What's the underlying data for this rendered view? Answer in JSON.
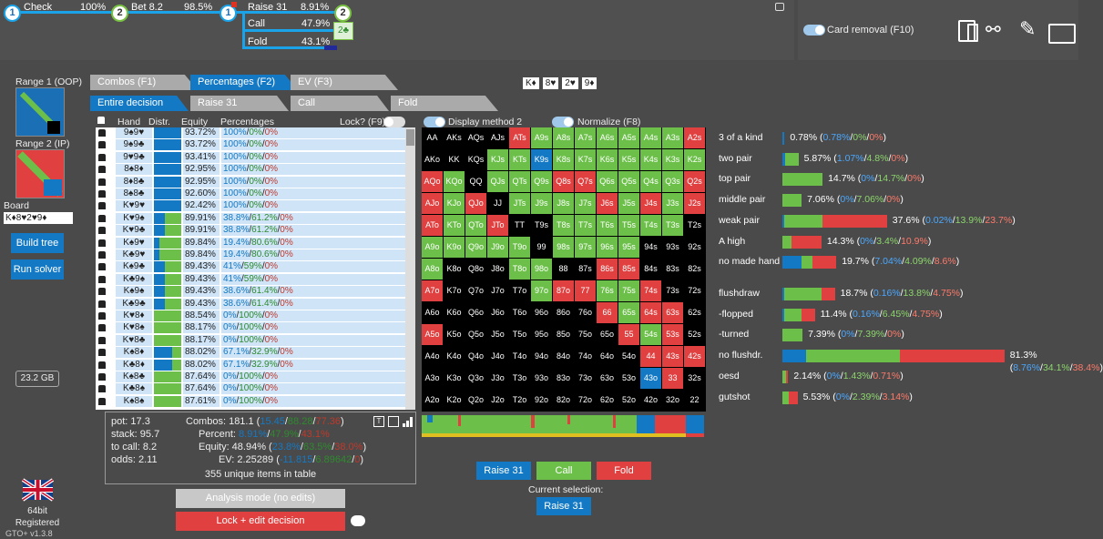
{
  "tree": {
    "nodes": [
      {
        "num": "1",
        "label": "Check",
        "pct": "100%"
      },
      {
        "num": "2",
        "label": "Bet 8.2",
        "pct": "98.5%"
      },
      {
        "num": "1",
        "label": "Raise 31",
        "pct": "8.91%"
      },
      {
        "num": "2",
        "label": "",
        "pct": ""
      }
    ],
    "branches": [
      {
        "label": "Call",
        "pct": "47.9%"
      },
      {
        "label": "Fold",
        "pct": "43.1%"
      }
    ],
    "card_box": "2♣"
  },
  "card_removal": {
    "label": "Card removal (F10)"
  },
  "left": {
    "range1": "Range 1 (OOP)",
    "range2": "Range 2 (IP)",
    "board_label": "Board",
    "board_value": "K♦8♥2♥9♦",
    "build_tree": "Build tree",
    "run_solver": "Run solver",
    "memory": "23.2 GB",
    "bits": "64bit",
    "registered": "Registered",
    "version": "GTO+ v1.3.8"
  },
  "tabs": {
    "top": [
      "Combos (F1)",
      "Percentages (F2)",
      "EV (F3)"
    ],
    "sub": [
      "Entire decision",
      "Raise 31",
      "Call",
      "Fold"
    ]
  },
  "board_cards": [
    "K♦",
    "8♥",
    "2♥",
    "9♦"
  ],
  "table": {
    "headers": {
      "hand": "Hand",
      "distr": "Distr.",
      "equity": "Equity",
      "pct": "Percentages",
      "lock": "Lock? (F9)"
    },
    "rows": [
      {
        "hand": "9♠9♥",
        "eq": "93.72%",
        "a": "100%",
        "b": "0%",
        "c": "0%",
        "blue": 1,
        "green": 0,
        "red": 0
      },
      {
        "hand": "9♠9♣",
        "eq": "93.72%",
        "a": "100%",
        "b": "0%",
        "c": "0%",
        "blue": 1,
        "green": 0,
        "red": 0
      },
      {
        "hand": "9♥9♣",
        "eq": "93.41%",
        "a": "100%",
        "b": "0%",
        "c": "0%",
        "blue": 1,
        "green": 0,
        "red": 0
      },
      {
        "hand": "8♠8♦",
        "eq": "92.95%",
        "a": "100%",
        "b": "0%",
        "c": "0%",
        "blue": 1,
        "green": 0,
        "red": 0
      },
      {
        "hand": "8♦8♣",
        "eq": "92.95%",
        "a": "100%",
        "b": "0%",
        "c": "0%",
        "blue": 1,
        "green": 0,
        "red": 0
      },
      {
        "hand": "8♠8♣",
        "eq": "92.60%",
        "a": "100%",
        "b": "0%",
        "c": "0%",
        "blue": 1,
        "green": 0,
        "red": 0
      },
      {
        "hand": "K♥9♥",
        "eq": "92.42%",
        "a": "100%",
        "b": "0%",
        "c": "0%",
        "blue": 1,
        "green": 0,
        "red": 0
      },
      {
        "hand": "K♥9♠",
        "eq": "89.91%",
        "a": "38.8%",
        "b": "61.2%",
        "c": "0%",
        "blue": 0.388,
        "green": 0.612,
        "red": 0
      },
      {
        "hand": "K♥9♣",
        "eq": "89.91%",
        "a": "38.8%",
        "b": "61.2%",
        "c": "0%",
        "blue": 0.388,
        "green": 0.612,
        "red": 0
      },
      {
        "hand": "K♠9♥",
        "eq": "89.84%",
        "a": "19.4%",
        "b": "80.6%",
        "c": "0%",
        "blue": 0.194,
        "green": 0.806,
        "red": 0
      },
      {
        "hand": "K♣9♥",
        "eq": "89.84%",
        "a": "19.4%",
        "b": "80.6%",
        "c": "0%",
        "blue": 0.194,
        "green": 0.806,
        "red": 0
      },
      {
        "hand": "K♠9♣",
        "eq": "89.43%",
        "a": "41%",
        "b": "59%",
        "c": "0%",
        "blue": 0.41,
        "green": 0.59,
        "red": 0
      },
      {
        "hand": "K♣9♠",
        "eq": "89.43%",
        "a": "41%",
        "b": "59%",
        "c": "0%",
        "blue": 0.41,
        "green": 0.59,
        "red": 0
      },
      {
        "hand": "K♠9♠",
        "eq": "89.43%",
        "a": "38.6%",
        "b": "61.4%",
        "c": "0%",
        "blue": 0.386,
        "green": 0.614,
        "red": 0
      },
      {
        "hand": "K♣9♣",
        "eq": "89.43%",
        "a": "38.6%",
        "b": "61.4%",
        "c": "0%",
        "blue": 0.386,
        "green": 0.614,
        "red": 0
      },
      {
        "hand": "K♥8♦",
        "eq": "88.54%",
        "a": "0%",
        "b": "100%",
        "c": "0%",
        "blue": 0,
        "green": 1,
        "red": 0
      },
      {
        "hand": "K♥8♠",
        "eq": "88.17%",
        "a": "0%",
        "b": "100%",
        "c": "0%",
        "blue": 0,
        "green": 1,
        "red": 0
      },
      {
        "hand": "K♥8♣",
        "eq": "88.17%",
        "a": "0%",
        "b": "100%",
        "c": "0%",
        "blue": 0,
        "green": 1,
        "red": 0
      },
      {
        "hand": "K♠8♦",
        "eq": "88.02%",
        "a": "67.1%",
        "b": "32.9%",
        "c": "0%",
        "blue": 0.671,
        "green": 0.329,
        "red": 0
      },
      {
        "hand": "K♣8♦",
        "eq": "88.02%",
        "a": "67.1%",
        "b": "32.9%",
        "c": "0%",
        "blue": 0.671,
        "green": 0.329,
        "red": 0
      },
      {
        "hand": "K♠8♣",
        "eq": "87.64%",
        "a": "0%",
        "b": "100%",
        "c": "0%",
        "blue": 0,
        "green": 1,
        "red": 0
      },
      {
        "hand": "K♣8♠",
        "eq": "87.64%",
        "a": "0%",
        "b": "100%",
        "c": "0%",
        "blue": 0,
        "green": 1,
        "red": 0
      },
      {
        "hand": "K♠8♠",
        "eq": "87.61%",
        "a": "0%",
        "b": "100%",
        "c": "0%",
        "blue": 0,
        "green": 1,
        "red": 0
      }
    ]
  },
  "summary": {
    "pot": "pot: 17.3",
    "stack": "stack: 95.7",
    "tocall": "to call: 8.2",
    "odds": "odds: 2.11",
    "combos_label": "Combos: 181.1 (",
    "combos_vals": [
      "15.45",
      "88.28",
      "77.36"
    ],
    "percent_label": "Percent:",
    "percent_vals": [
      "8.91%",
      "47.9%",
      "43.1%"
    ],
    "equity_label": "Equity: 48.94% (",
    "equity_vals": [
      "23.8%",
      "63.5%",
      "38.0%"
    ],
    "ev_label": "EV: 2.25289 (",
    "ev_vals": [
      "-11.815",
      "6.89642",
      "0"
    ],
    "unique": "355 unique items in table"
  },
  "modes": {
    "analysis": "Analysis mode (no edits)",
    "lock": "Lock + edit decision"
  },
  "grid_opts": {
    "display": "Display method 2",
    "normalize": "Normalize (F8)"
  },
  "grid": {
    "ranks": [
      "A",
      "K",
      "Q",
      "J",
      "T",
      "9",
      "8",
      "7",
      "6",
      "5",
      "4",
      "3",
      "2"
    ],
    "colors": {
      "blue": "#1479c4",
      "green": "#6cc04a",
      "red": "#e04040",
      "black": "#000000"
    },
    "cells": [
      [
        "k",
        "k",
        "k",
        "k",
        "r",
        "g",
        "g",
        "g",
        "g",
        "g",
        "g",
        "g",
        "r"
      ],
      [
        "k",
        "k",
        "k",
        "g",
        "g",
        "b",
        "g",
        "g",
        "g",
        "g",
        "g",
        "g",
        "g"
      ],
      [
        "r",
        "g",
        "k",
        "g",
        "g",
        "g",
        "r",
        "r",
        "g",
        "g",
        "g",
        "g",
        "r"
      ],
      [
        "r",
        "g",
        "r",
        "k",
        "g",
        "g",
        "g",
        "g",
        "r",
        "g",
        "r",
        "g",
        "r"
      ],
      [
        "r",
        "g",
        "g",
        "r",
        "k",
        "k",
        "g",
        "g",
        "g",
        "g",
        "g",
        "g",
        "k"
      ],
      [
        "g",
        "g",
        "g",
        "g",
        "g",
        "k",
        "g",
        "g",
        "g",
        "g",
        "k",
        "k",
        "k"
      ],
      [
        "g",
        "k",
        "k",
        "k",
        "g",
        "g",
        "k",
        "k",
        "r",
        "r",
        "k",
        "k",
        "k"
      ],
      [
        "r",
        "k",
        "k",
        "k",
        "k",
        "g",
        "r",
        "r",
        "g",
        "g",
        "r",
        "k",
        "k"
      ],
      [
        "k",
        "k",
        "k",
        "k",
        "k",
        "k",
        "k",
        "k",
        "r",
        "g",
        "r",
        "r",
        "k"
      ],
      [
        "r",
        "k",
        "k",
        "k",
        "k",
        "k",
        "k",
        "k",
        "k",
        "r",
        "g",
        "r",
        "k"
      ],
      [
        "k",
        "k",
        "k",
        "k",
        "k",
        "k",
        "k",
        "k",
        "k",
        "k",
        "r",
        "r",
        "r"
      ],
      [
        "k",
        "k",
        "k",
        "k",
        "k",
        "k",
        "k",
        "k",
        "k",
        "k",
        "b",
        "r",
        "k"
      ],
      [
        "k",
        "k",
        "k",
        "k",
        "k",
        "k",
        "k",
        "k",
        "k",
        "k",
        "k",
        "k",
        "k"
      ]
    ]
  },
  "actions": {
    "raise": "Raise 31",
    "call": "Call",
    "fold": "Fold",
    "current_label": "Current selection:",
    "current": "Raise 31"
  },
  "stats": {
    "made": [
      {
        "label": "3 of a kind",
        "total": "0.78%",
        "a": "0.78%",
        "b": "0%",
        "c": "0%",
        "blue": 0.0078,
        "green": 0,
        "red": 0
      },
      {
        "label": "two pair",
        "total": "5.87%",
        "a": "1.07%",
        "b": "4.8%",
        "c": "0%",
        "blue": 0.0107,
        "green": 0.048,
        "red": 0
      },
      {
        "label": "top pair",
        "total": "14.7%",
        "a": "0%",
        "b": "14.7%",
        "c": "0%",
        "blue": 0,
        "green": 0.147,
        "red": 0
      },
      {
        "label": "middle pair",
        "total": "7.06%",
        "a": "0%",
        "b": "7.06%",
        "c": "0%",
        "blue": 0,
        "green": 0.0706,
        "red": 0
      },
      {
        "label": "weak pair",
        "total": "37.6%",
        "a": "0.02%",
        "b": "13.9%",
        "c": "23.7%",
        "blue": 0.0002,
        "green": 0.139,
        "red": 0.237
      },
      {
        "label": "A high",
        "total": "14.3%",
        "a": "0%",
        "b": "3.4%",
        "c": "10.9%",
        "blue": 0,
        "green": 0.034,
        "red": 0.109
      },
      {
        "label": "no made hand",
        "total": "19.7%",
        "a": "7.04%",
        "b": "4.09%",
        "c": "8.6%",
        "blue": 0.0704,
        "green": 0.0409,
        "red": 0.086
      }
    ],
    "draws": [
      {
        "label": "flushdraw",
        "total": "18.7%",
        "a": "0.16%",
        "b": "13.8%",
        "c": "4.75%",
        "blue": 0.0016,
        "green": 0.138,
        "red": 0.0475
      },
      {
        "label": "-flopped",
        "total": "11.4%",
        "a": "0.16%",
        "b": "6.45%",
        "c": "4.75%",
        "blue": 0.0016,
        "green": 0.0645,
        "red": 0.0475
      },
      {
        "label": "-turned",
        "total": "7.39%",
        "a": "0%",
        "b": "7.39%",
        "c": "0%",
        "blue": 0,
        "green": 0.0739,
        "red": 0
      },
      {
        "label": "no flushdr.",
        "total": "81.3%",
        "a": "8.76%",
        "b": "34.1%",
        "c": "38.4%",
        "blue": 0.0876,
        "green": 0.341,
        "red": 0.384
      },
      {
        "label": "oesd",
        "total": "2.14%",
        "a": "0%",
        "b": "1.43%",
        "c": "0.71%",
        "blue": 0,
        "green": 0.0143,
        "red": 0.0071
      },
      {
        "label": "gutshot",
        "total": "5.53%",
        "a": "0%",
        "b": "2.39%",
        "c": "3.14%",
        "blue": 0,
        "green": 0.0239,
        "red": 0.0314
      }
    ]
  }
}
